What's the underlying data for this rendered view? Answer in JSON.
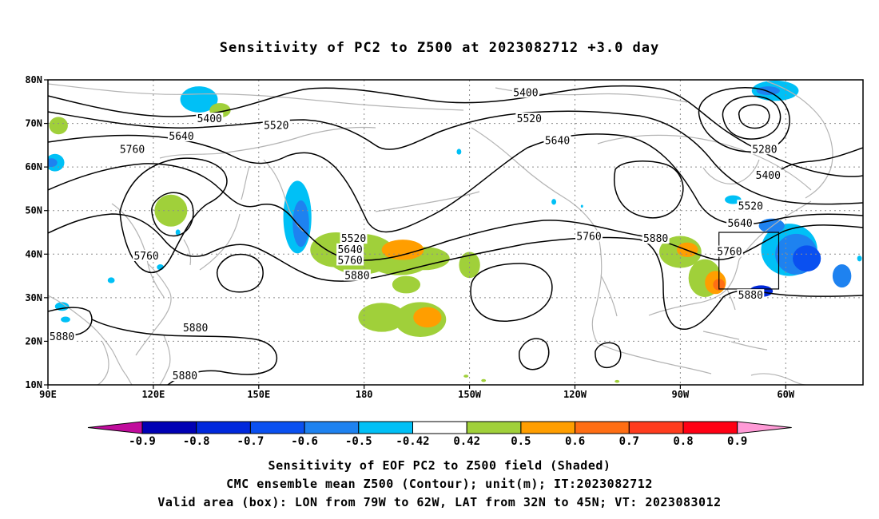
{
  "title": "Sensitivity of PC2 to Z500 at 2023082712 +3.0 day",
  "footer": {
    "line1": "Sensitivity of EOF PC2 to Z500 field (Shaded)",
    "line2": "CMC ensemble mean Z500 (Contour); unit(m); IT:2023082712",
    "line3": "Valid area (box): LON from 79W to 62W, LAT from 32N to 45N; VT: 2023083012"
  },
  "map": {
    "lat_labels": [
      "80N",
      "70N",
      "60N",
      "50N",
      "40N",
      "30N",
      "20N",
      "10N"
    ],
    "lat_values": [
      80,
      70,
      60,
      50,
      40,
      30,
      20,
      10
    ],
    "lon_labels": [
      "90E",
      "120E",
      "150E",
      "180",
      "150W",
      "120W",
      "90W",
      "60W"
    ],
    "lon_values": [
      90,
      120,
      150,
      180,
      210,
      240,
      270,
      300
    ],
    "extent": {
      "lon_min": 90,
      "lon_max": 322,
      "lat_min": 10,
      "lat_max": 80
    },
    "valid_box": {
      "lon_min": -79,
      "lon_max": -62,
      "lat_min": 32,
      "lat_max": 45
    },
    "contour_labels": [
      {
        "text": "5400",
        "lon": 136,
        "lat": 71
      },
      {
        "text": "5520",
        "lon": 155,
        "lat": 69.5
      },
      {
        "text": "5640",
        "lon": 128,
        "lat": 67
      },
      {
        "text": "5760",
        "lon": 114,
        "lat": 64
      },
      {
        "text": "5760",
        "lon": 118,
        "lat": 39.5
      },
      {
        "text": "5880",
        "lon": 94,
        "lat": 21
      },
      {
        "text": "5880",
        "lon": 132,
        "lat": 23
      },
      {
        "text": "5880",
        "lon": 129,
        "lat": 12
      },
      {
        "text": "5520",
        "lon": 177,
        "lat": 43.5
      },
      {
        "text": "5640",
        "lon": 176,
        "lat": 41
      },
      {
        "text": "5760",
        "lon": 176,
        "lat": 38.5
      },
      {
        "text": "5880",
        "lon": 178,
        "lat": 35
      },
      {
        "text": "5400",
        "lon": 226,
        "lat": 77
      },
      {
        "text": "5520",
        "lon": 227,
        "lat": 71
      },
      {
        "text": "5640",
        "lon": 235,
        "lat": 66
      },
      {
        "text": "5760",
        "lon": 244,
        "lat": 44
      },
      {
        "text": "5880",
        "lon": 263,
        "lat": 43.5
      },
      {
        "text": "5280",
        "lon": 294,
        "lat": 64
      },
      {
        "text": "5400",
        "lon": 295,
        "lat": 58
      },
      {
        "text": "5520",
        "lon": 290,
        "lat": 51
      },
      {
        "text": "5640",
        "lon": 287,
        "lat": 47
      },
      {
        "text": "5760",
        "lon": 284,
        "lat": 40.5
      },
      {
        "text": "5880",
        "lon": 290,
        "lat": 30.5
      }
    ],
    "colors": {
      "contour": "#000000",
      "coast": "#b4b4b4",
      "grid": "#8c8c8c"
    }
  },
  "colorbar": {
    "labels": [
      "-0.9",
      "-0.8",
      "-0.7",
      "-0.6",
      "-0.5",
      "-0.42",
      "0.42",
      "0.5",
      "0.6",
      "0.7",
      "0.8",
      "0.9"
    ],
    "colors": [
      "#c00c9c",
      "#0000b4",
      "#0028dc",
      "#0a50f0",
      "#1e82f0",
      "#00c0f6",
      "#ffffff",
      "#a0d03a",
      "#ff9e00",
      "#ff6e14",
      "#ff3c1e",
      "#ff0014",
      "#ff9ad6"
    ]
  },
  "shading": [
    {
      "lon": 133,
      "lat": 75.5,
      "rx": 16,
      "ry": 9,
      "color": "#00c0f6"
    },
    {
      "lon": 139,
      "lat": 73,
      "rx": 9,
      "ry": 5,
      "color": "#a0d03a"
    },
    {
      "lon": 93,
      "lat": 69.5,
      "rx": 8,
      "ry": 6,
      "color": "#a0d03a"
    },
    {
      "lon": 92,
      "lat": 61,
      "rx": 8,
      "ry": 6,
      "color": "#00c0f6"
    },
    {
      "lon": 91,
      "lat": 61,
      "rx": 5,
      "ry": 3,
      "color": "#1e82f0"
    },
    {
      "lon": 125,
      "lat": 50,
      "rx": 14,
      "ry": 11,
      "color": "#a0d03a"
    },
    {
      "lon": 161,
      "lat": 48.5,
      "rx": 12,
      "ry": 25,
      "color": "#00c0f6"
    },
    {
      "lon": 162,
      "lat": 47,
      "rx": 7,
      "ry": 16,
      "color": "#1e82f0"
    },
    {
      "lon": 172,
      "lat": 41,
      "rx": 22,
      "ry": 12,
      "color": "#a0d03a"
    },
    {
      "lon": 179,
      "lat": 40,
      "rx": 30,
      "ry": 14,
      "color": "#a0d03a"
    },
    {
      "lon": 190,
      "lat": 38.5,
      "rx": 26,
      "ry": 10,
      "color": "#a0d03a"
    },
    {
      "lon": 197,
      "lat": 39,
      "rx": 22,
      "ry": 8,
      "color": "#a0d03a"
    },
    {
      "lon": 191,
      "lat": 41,
      "rx": 18,
      "ry": 7,
      "color": "#ff9e00"
    },
    {
      "lon": 210,
      "lat": 37.5,
      "rx": 9,
      "ry": 9,
      "color": "#a0d03a"
    },
    {
      "lon": 192,
      "lat": 33,
      "rx": 12,
      "ry": 6,
      "color": "#a0d03a"
    },
    {
      "lon": 185,
      "lat": 25.5,
      "rx": 20,
      "ry": 10,
      "color": "#a0d03a"
    },
    {
      "lon": 196,
      "lat": 25,
      "rx": 22,
      "ry": 12,
      "color": "#a0d03a"
    },
    {
      "lon": 198,
      "lat": 25.5,
      "rx": 12,
      "ry": 7,
      "color": "#ff9e00"
    },
    {
      "lon": 270,
      "lat": 40.5,
      "rx": 18,
      "ry": 11,
      "color": "#a0d03a"
    },
    {
      "lon": 272,
      "lat": 41,
      "rx": 9,
      "ry": 5,
      "color": "#ff9e00"
    },
    {
      "lon": 277,
      "lat": 34.5,
      "rx": 14,
      "ry": 13,
      "color": "#a0d03a"
    },
    {
      "lon": 280,
      "lat": 33.5,
      "rx": 9,
      "ry": 8,
      "color": "#ff9e00"
    },
    {
      "lon": 281,
      "lat": 33,
      "rx": 5,
      "ry": 4,
      "color": "#ff6e14"
    },
    {
      "lon": 297,
      "lat": 77.5,
      "rx": 20,
      "ry": 7,
      "color": "#00c0f6"
    },
    {
      "lon": 295,
      "lat": 77.5,
      "rx": 10,
      "ry": 3,
      "color": "#1e82f0"
    },
    {
      "lon": 285,
      "lat": 52.5,
      "rx": 7,
      "ry": 3,
      "color": "#00c0f6"
    },
    {
      "lon": 301,
      "lat": 41,
      "rx": 24,
      "ry": 18,
      "color": "#00c0f6"
    },
    {
      "lon": 303,
      "lat": 40,
      "rx": 18,
      "ry": 14,
      "color": "#1e82f0"
    },
    {
      "lon": 306,
      "lat": 39,
      "rx": 12,
      "ry": 9,
      "color": "#0a50f0"
    },
    {
      "lon": 296,
      "lat": 46.5,
      "rx": 11,
      "ry": 5,
      "color": "#1e82f0"
    },
    {
      "lon": 293,
      "lat": 31.5,
      "rx": 10,
      "ry": 4,
      "color": "#0028dc"
    },
    {
      "lon": 316,
      "lat": 35,
      "rx": 8,
      "ry": 8,
      "color": "#1e82f0"
    },
    {
      "lon": 321,
      "lat": 39,
      "rx": 2,
      "ry": 2,
      "color": "#00c0f6"
    },
    {
      "lon": 94,
      "lat": 28,
      "rx": 6,
      "ry": 3,
      "color": "#00c0f6"
    },
    {
      "lon": 95,
      "lat": 25,
      "rx": 4,
      "ry": 2,
      "color": "#00c0f6"
    },
    {
      "lon": 127,
      "lat": 45,
      "rx": 2,
      "ry": 2,
      "color": "#00c0f6"
    },
    {
      "lon": 122,
      "lat": 37,
      "rx": 3,
      "ry": 2,
      "color": "#00c0f6"
    },
    {
      "lon": 108,
      "lat": 34,
      "rx": 3,
      "ry": 2,
      "color": "#00c0f6"
    },
    {
      "lon": 207,
      "lat": 63.5,
      "rx": 2,
      "ry": 2,
      "color": "#00c0f6"
    },
    {
      "lon": 234,
      "lat": 52,
      "rx": 2,
      "ry": 2,
      "color": "#00c0f6"
    },
    {
      "lon": 242,
      "lat": 51,
      "rx": 1,
      "ry": 1,
      "color": "#00c0f6"
    },
    {
      "lon": 209,
      "lat": 12,
      "rx": 2,
      "ry": 1,
      "color": "#a0d03a"
    },
    {
      "lon": 214,
      "lat": 11,
      "rx": 2,
      "ry": 1,
      "color": "#a0d03a"
    },
    {
      "lon": 252,
      "lat": 10.8,
      "rx": 2,
      "ry": 1,
      "color": "#a0d03a"
    }
  ]
}
